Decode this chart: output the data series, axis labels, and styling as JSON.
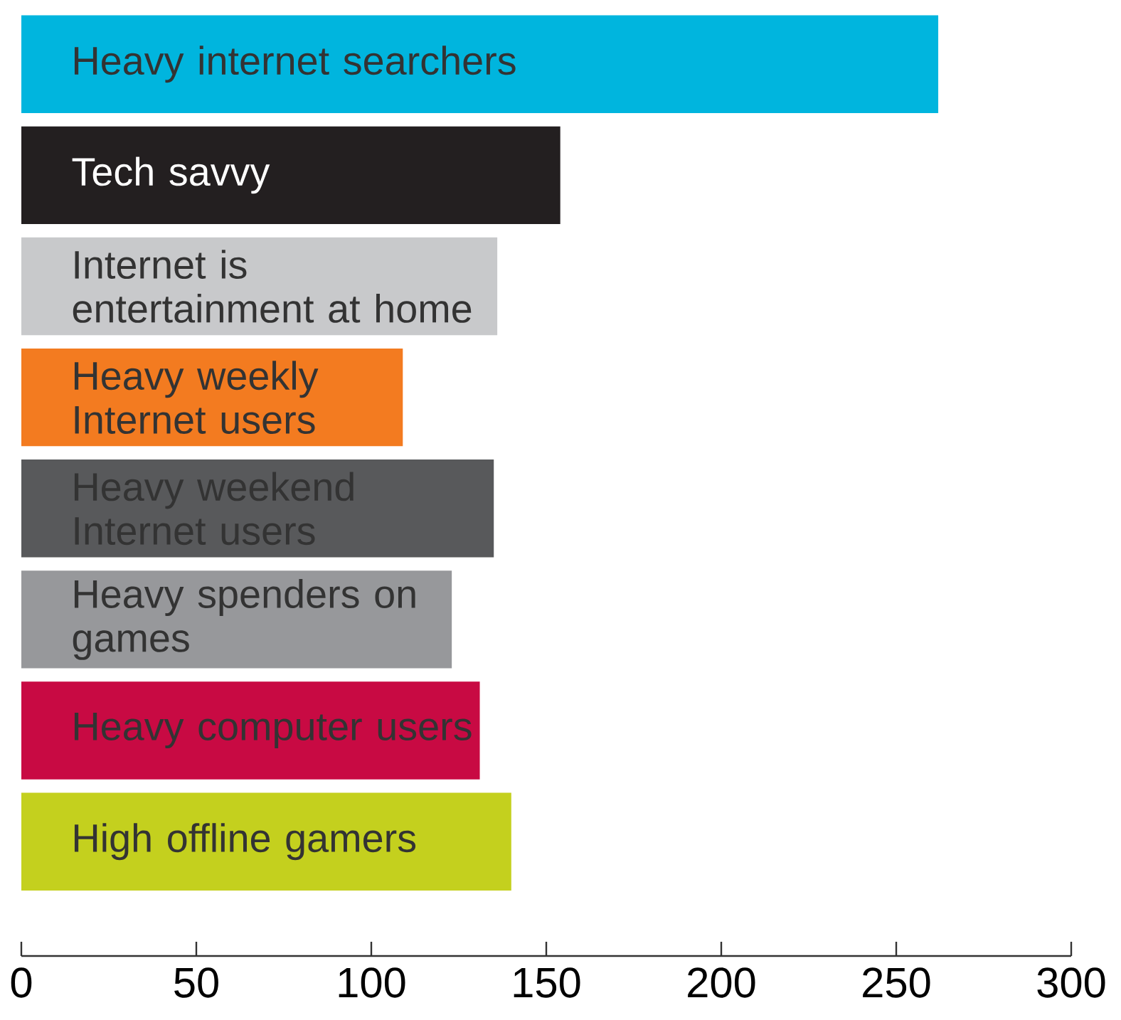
{
  "chart_data": {
    "type": "bar",
    "orientation": "horizontal",
    "categories": [
      "Heavy internet searchers",
      "Tech savvy",
      "Internet is entertainment at home",
      "Heavy weekly Internet users",
      "Heavy weekend Internet users",
      "Heavy spenders on games",
      "Heavy computer users",
      "High offline gamers"
    ],
    "values": [
      262,
      154,
      136,
      109,
      135,
      123,
      131,
      140
    ],
    "colors": [
      "#00b5de",
      "#231f20",
      "#c8c9cb",
      "#f37b20",
      "#58595b",
      "#97989b",
      "#c80a43",
      "#c4d01e"
    ],
    "xlim": [
      0,
      300
    ],
    "xticks": [
      0,
      50,
      100,
      150,
      200,
      250,
      300
    ],
    "grid": false
  }
}
